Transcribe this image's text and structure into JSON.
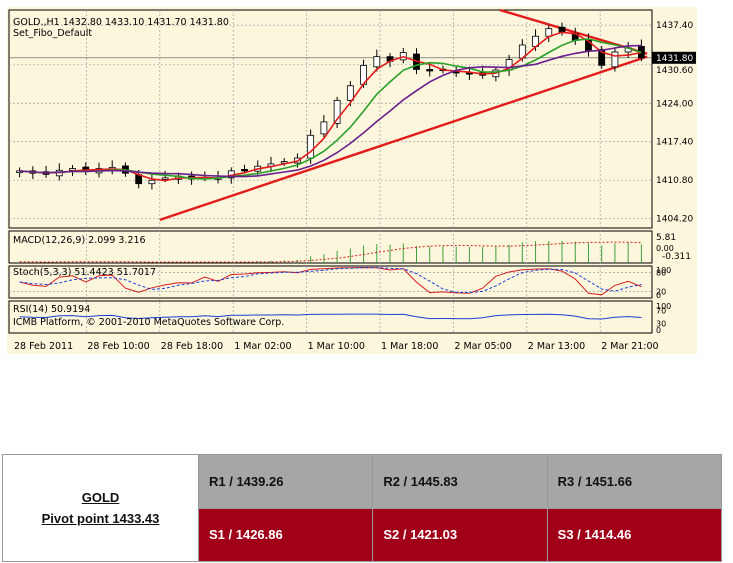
{
  "chart_data": {
    "type": "candlestick",
    "instrument": "GOLD.,H1",
    "ohlc_header": "GOLD.,H1  1432.80 1433.10 1431.70 1431.80",
    "template": "Set_Fibo_Default",
    "current_price": "1431.80",
    "price_ticks": [
      "1437.40",
      "1430.60",
      "1424.00",
      "1417.40",
      "1410.80",
      "1404.20"
    ],
    "ylim": [
      1402.6,
      1440.0
    ],
    "time_ticks": [
      "28 Feb 2011",
      "28 Feb 10:00",
      "28 Feb 18:00",
      "1 Mar 02:00",
      "1 Mar 10:00",
      "1 Mar 18:00",
      "2 Mar 05:00",
      "2 Mar 13:00",
      "2 Mar 21:00"
    ],
    "close_path": [
      1412.4,
      1412.0,
      1411.8,
      1412.5,
      1412.8,
      1412.3,
      1412.8,
      1413.0,
      1412.0,
      1410.2,
      1410.8,
      1411.2,
      1411.5,
      1411.0,
      1411.3,
      1411.2,
      1412.4,
      1412.6,
      1413.2,
      1413.6,
      1414.0,
      1414.6,
      1418.5,
      1420.8,
      1424.5,
      1427.0,
      1430.5,
      1432.0,
      1431.2,
      1432.7,
      1429.8,
      1429.6,
      1429.7,
      1429.3,
      1429.0,
      1428.8,
      1429.7,
      1431.5,
      1434.0,
      1435.5,
      1436.8,
      1436.2,
      1434.8,
      1433.0,
      1430.5,
      1432.8,
      1433.5,
      1431.8
    ],
    "trendlines": [
      {
        "from": [
          "28 Feb 18:00",
          1404.0
        ],
        "to": [
          "2 Mar 21:00",
          1432.0
        ],
        "color": "#e31b1b"
      },
      {
        "from": [
          "2 Mar 10:00",
          1440.0
        ],
        "to": [
          "2 Mar 21:00",
          1432.5
        ],
        "color": "#e31b1b"
      }
    ],
    "indicators": {
      "macd": {
        "label": "MACD(12,26,9) 2.099 3.216",
        "scale": [
          "5.81",
          "-0.311"
        ],
        "scale_corner": "0.00"
      },
      "stochastic": {
        "label": "Stoch(5,3,3) 51.4423 51.7017",
        "scale": [
          "100",
          "80",
          "20",
          "0"
        ]
      },
      "rsi": {
        "label": "RSI(14) 50.9194",
        "scale": [
          "100",
          "70",
          "30",
          "0"
        ]
      }
    },
    "copyright": "ICMB Platform, © 2001-2010 MetaQuotes Software Corp."
  },
  "pivot": {
    "symbol": "GOLD",
    "pivot_label": "Pivot point 1433.43",
    "resistance": [
      "R1 / 1439.26",
      "R2 / 1445.83",
      "R3 / 1451.66"
    ],
    "support": [
      "S1 / 1426.86",
      "S2 / 1421.03",
      "S3 / 1414.46"
    ]
  },
  "colors": {
    "chart_bg": "#fcf6dc",
    "bull_candle": "#ffffff",
    "bear_candle": "#000000",
    "ma_fast": "#e31b1b",
    "ma_mid": "#27a127",
    "ma_slow": "#6a1f8f",
    "trendline": "#e31b1b",
    "resistance_row": "#a6a6a6",
    "support_row": "#a00018"
  }
}
